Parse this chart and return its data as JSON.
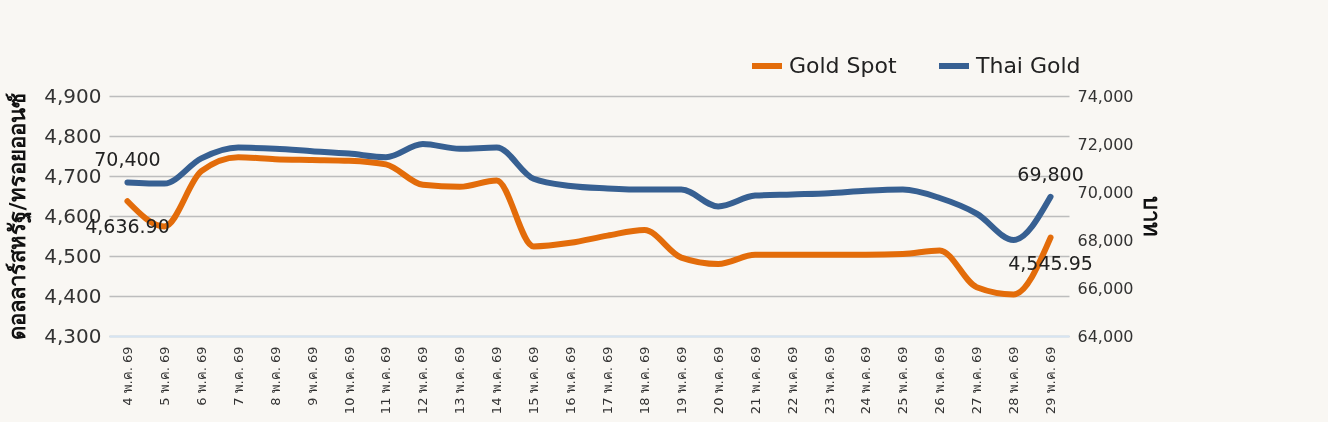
{
  "chart_data": {
    "type": "line",
    "ylabel": "ดอลลาร์สหรัฐ/ทรอยออนซ์",
    "y2label": "บาท",
    "categories": [
      "4 พ.ค. 69",
      "5 พ.ค. 69",
      "6 พ.ค. 69",
      "7 พ.ค. 69",
      "8 พ.ค. 69",
      "9 พ.ค. 69",
      "10 พ.ค. 69",
      "11 พ.ค. 69",
      "12 พ.ค. 69",
      "13 พ.ค. 69",
      "14 พ.ค. 69",
      "15 พ.ค. 69",
      "16 พ.ค. 69",
      "17 พ.ค. 69",
      "18 พ.ค. 69",
      "19 พ.ค. 69",
      "20 พ.ค. 69",
      "21 พ.ค. 69",
      "22 พ.ค. 69",
      "23 พ.ค. 69",
      "24 พ.ค. 69",
      "25 พ.ค. 69",
      "26 พ.ค. 69",
      "27 พ.ค. 69",
      "28 พ.ค. 69",
      "29 พ.ค. 69"
    ],
    "series": [
      {
        "name": "Gold Spot",
        "color": "#e36c0a",
        "values": [
          4636.9,
          4574,
          4712,
          4747,
          4742,
          4740,
          4738,
          4729,
          4678,
          4673,
          4689,
          4524,
          4533,
          4551,
          4565,
          4496,
          4480,
          4503,
          4503,
          4503,
          4503,
          4505,
          4514,
          4422,
          4404,
          4545.95
        ],
        "value_labels": [
          "4,636.90",
          null,
          null,
          null,
          null,
          null,
          null,
          null,
          null,
          null,
          null,
          null,
          null,
          null,
          null,
          null,
          null,
          null,
          null,
          null,
          null,
          null,
          null,
          null,
          null,
          "4,545.95"
        ]
      },
      {
        "name": "Thai Gold",
        "color": "#376092",
        "axis": "y2",
        "values": [
          70400,
          70350,
          71400,
          71850,
          71800,
          71700,
          71600,
          71450,
          72000,
          71800,
          71850,
          70550,
          70250,
          70150,
          70100,
          70100,
          69400,
          69850,
          69900,
          69950,
          70050,
          70100,
          69750,
          69100,
          68000,
          69800
        ],
        "value_labels": [
          "70,400",
          null,
          null,
          null,
          null,
          null,
          null,
          null,
          null,
          null,
          null,
          null,
          null,
          null,
          null,
          null,
          null,
          null,
          null,
          null,
          null,
          null,
          null,
          null,
          null,
          "69,800"
        ]
      }
    ],
    "ylim": [
      4300,
      4900
    ],
    "yticks": [
      {
        "value": 4300,
        "label": "4,300"
      },
      {
        "value": 4400,
        "label": "4,400"
      },
      {
        "value": 4500,
        "label": "4,500"
      },
      {
        "value": 4600,
        "label": "4,600"
      },
      {
        "value": 4700,
        "label": "4,700"
      },
      {
        "value": 4800,
        "label": "4,800"
      },
      {
        "value": 4900,
        "label": "4,900"
      }
    ],
    "y2lim": [
      64000,
      74000
    ],
    "y2ticks": [
      {
        "value": 64000,
        "label": "64,000"
      },
      {
        "value": 66000,
        "label": "66,000"
      },
      {
        "value": 68000,
        "label": "68,000"
      },
      {
        "value": 70000,
        "label": "70,000"
      },
      {
        "value": 72000,
        "label": "72,000"
      },
      {
        "value": 74000,
        "label": "74,000"
      }
    ],
    "grid": "y",
    "legend": "top right",
    "marker": "none",
    "line_style": "solid"
  }
}
